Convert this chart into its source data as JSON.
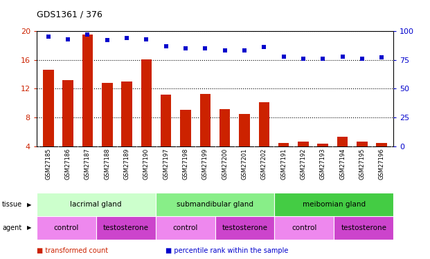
{
  "title": "GDS1361 / 376",
  "samples": [
    "GSM27185",
    "GSM27186",
    "GSM27187",
    "GSM27188",
    "GSM27189",
    "GSM27190",
    "GSM27197",
    "GSM27198",
    "GSM27199",
    "GSM27200",
    "GSM27201",
    "GSM27202",
    "GSM27191",
    "GSM27192",
    "GSM27193",
    "GSM27194",
    "GSM27195",
    "GSM27196"
  ],
  "transformed_count": [
    14.6,
    13.2,
    19.5,
    12.8,
    13.0,
    16.1,
    11.2,
    9.1,
    11.3,
    9.2,
    8.5,
    10.1,
    4.5,
    4.7,
    4.4,
    5.3,
    4.7,
    4.5
  ],
  "percentile_rank": [
    95,
    93,
    97,
    92,
    94,
    93,
    87,
    85,
    85,
    83,
    83,
    86,
    78,
    76,
    76,
    78,
    76,
    77
  ],
  "bar_color": "#cc2200",
  "dot_color": "#0000cc",
  "ylim_left": [
    4,
    20
  ],
  "ylim_right": [
    0,
    100
  ],
  "yticks_left": [
    4,
    8,
    12,
    16,
    20
  ],
  "yticks_right": [
    0,
    25,
    50,
    75,
    100
  ],
  "tissue_groups": [
    {
      "label": "lacrimal gland",
      "start": 0,
      "end": 6,
      "color": "#ccffcc"
    },
    {
      "label": "submandibular gland",
      "start": 6,
      "end": 12,
      "color": "#88ee88"
    },
    {
      "label": "meibomian gland",
      "start": 12,
      "end": 18,
      "color": "#44cc44"
    }
  ],
  "agent_groups": [
    {
      "label": "control",
      "start": 0,
      "end": 3,
      "color": "#ee88ee"
    },
    {
      "label": "testosterone",
      "start": 3,
      "end": 6,
      "color": "#cc44cc"
    },
    {
      "label": "control",
      "start": 6,
      "end": 9,
      "color": "#ee88ee"
    },
    {
      "label": "testosterone",
      "start": 9,
      "end": 12,
      "color": "#cc44cc"
    },
    {
      "label": "control",
      "start": 12,
      "end": 15,
      "color": "#ee88ee"
    },
    {
      "label": "testosterone",
      "start": 15,
      "end": 18,
      "color": "#cc44cc"
    }
  ],
  "tissue_label": "tissue",
  "agent_label": "agent",
  "legend_items": [
    {
      "label": "transformed count",
      "color": "#cc2200"
    },
    {
      "label": "percentile rank within the sample",
      "color": "#0000cc"
    }
  ],
  "xlabels_bg": "#cccccc",
  "bar_color_left": "#cc2200",
  "ylabel_left_color": "#cc2200",
  "ylabel_right_color": "#0000cc"
}
